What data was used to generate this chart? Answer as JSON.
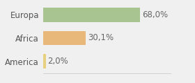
{
  "categories": [
    "America",
    "Africa",
    "Europa"
  ],
  "values": [
    2.0,
    30.1,
    68.0
  ],
  "labels": [
    "2,0%",
    "30,1%",
    "68,0%"
  ],
  "bar_colors": [
    "#e8d080",
    "#e8b87a",
    "#a8c490"
  ],
  "background_color": "#f0f0f0",
  "xlim": [
    0,
    90
  ],
  "bar_height": 0.62,
  "label_fontsize": 8.5,
  "tick_fontsize": 8.5
}
